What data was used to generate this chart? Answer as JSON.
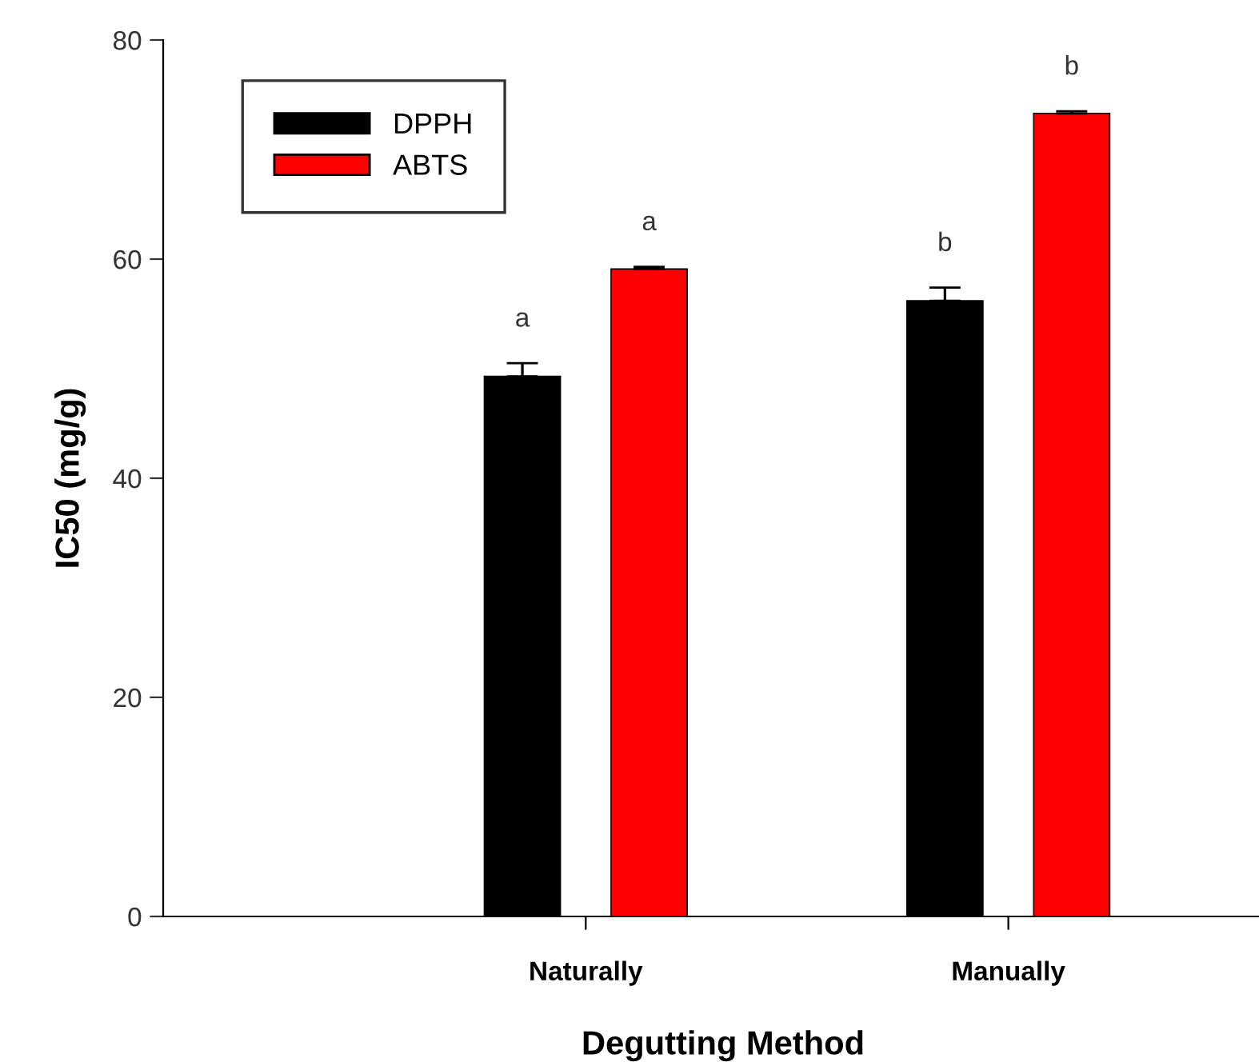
{
  "chart_data": {
    "type": "bar",
    "xlabel": "Degutting Method",
    "ylabel": "IC50 (mg/g)",
    "categories": [
      "Naturally",
      "Manually"
    ],
    "series": [
      {
        "name": "DPPH",
        "color": "#000000",
        "values": [
          49.3,
          56.2
        ],
        "errors": [
          1.2,
          1.2
        ]
      },
      {
        "name": "ABTS",
        "color": "#ff0000",
        "values": [
          59.1,
          73.3
        ],
        "errors": [
          0.2,
          0.2
        ]
      }
    ],
    "ylim": [
      0,
      80
    ],
    "yticks": [
      0,
      20,
      40,
      60,
      80
    ],
    "grid": false,
    "legend": "top left",
    "annotations": [
      "a",
      "a",
      "b",
      "b"
    ]
  }
}
